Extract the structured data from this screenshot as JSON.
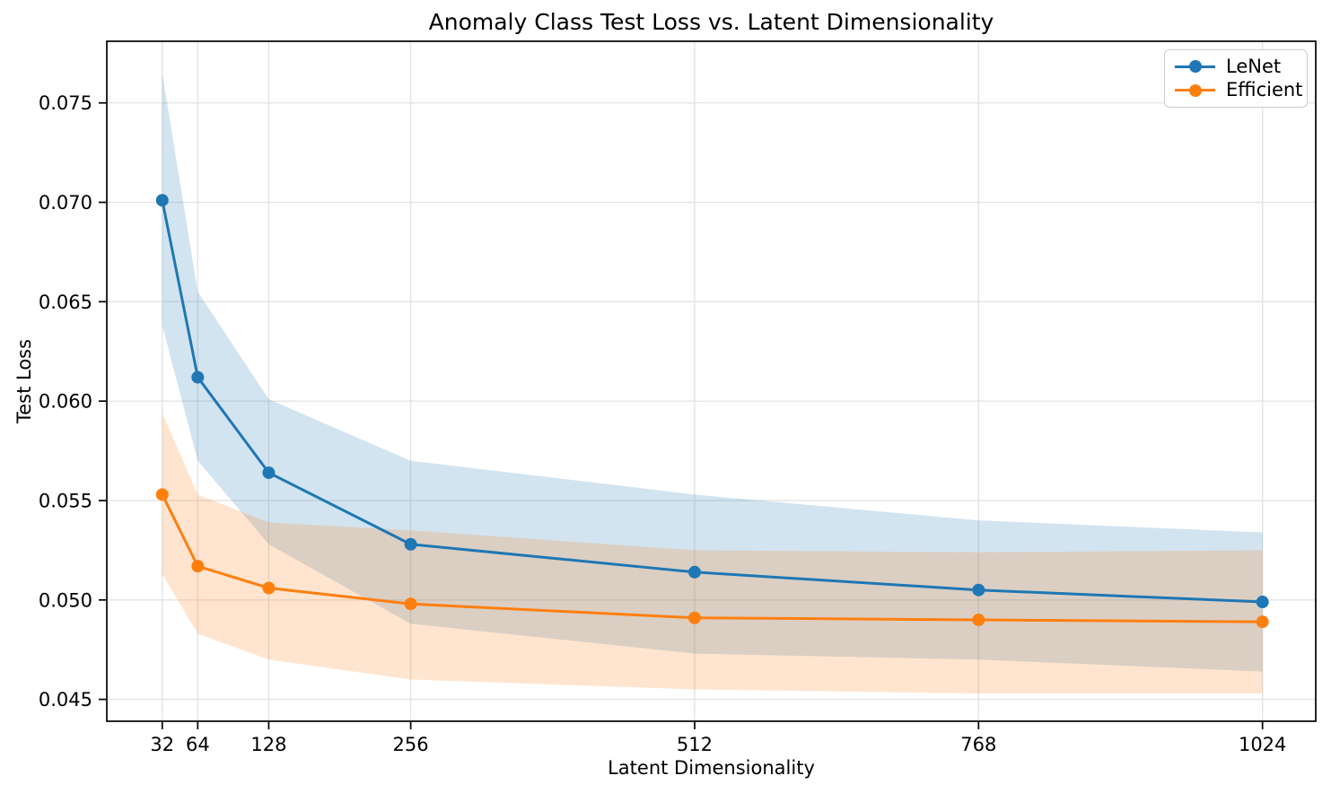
{
  "figure": {
    "background": "#ffffff",
    "text_color": "#000000",
    "spine_color": "#000000"
  },
  "chart_data": {
    "type": "line",
    "title": "Anomaly Class Test Loss vs. Latent Dimensionality",
    "xlabel": "Latent Dimensionality",
    "ylabel": "Test Loss",
    "x": [
      32,
      64,
      128,
      256,
      512,
      768,
      1024
    ],
    "x_tick_labels": [
      "32",
      "64",
      "128",
      "256",
      "512",
      "768",
      "1024"
    ],
    "y_ticks": [
      0.045,
      0.05,
      0.055,
      0.06,
      0.065,
      0.07,
      0.075
    ],
    "y_tick_labels": [
      "0.045",
      "0.050",
      "0.055",
      "0.060",
      "0.065",
      "0.070",
      "0.075"
    ],
    "xlim": [
      -18,
      1072
    ],
    "ylim": [
      0.0439,
      0.0781
    ],
    "grid": true,
    "grid_color": "#e4e4e4",
    "band_alpha": 0.2,
    "legend_position": "upper right",
    "series": [
      {
        "name": "LeNet",
        "color": "#1f77b4",
        "values": [
          0.0701,
          0.0612,
          0.0564,
          0.0528,
          0.0514,
          0.0505,
          0.0499
        ],
        "band_lower": [
          0.0638,
          0.057,
          0.0528,
          0.0488,
          0.0473,
          0.047,
          0.0464
        ],
        "band_upper": [
          0.0765,
          0.0655,
          0.0601,
          0.057,
          0.0553,
          0.054,
          0.0534
        ]
      },
      {
        "name": "Efficient",
        "color": "#ff7f0e",
        "values": [
          0.0553,
          0.0517,
          0.0506,
          0.0498,
          0.0491,
          0.049,
          0.0489
        ],
        "band_lower": [
          0.0513,
          0.0483,
          0.047,
          0.046,
          0.0455,
          0.0453,
          0.0453
        ],
        "band_upper": [
          0.0594,
          0.0553,
          0.0539,
          0.0535,
          0.0525,
          0.0524,
          0.0525
        ]
      }
    ]
  }
}
